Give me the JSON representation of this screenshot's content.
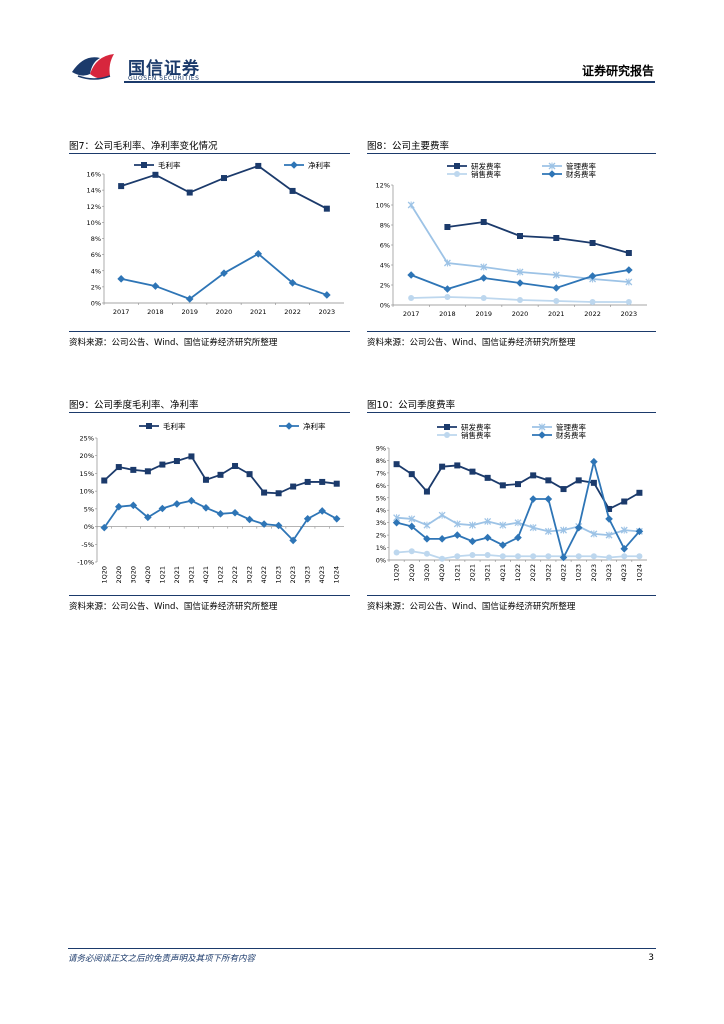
{
  "header": {
    "logo_cn": "国信证券",
    "logo_en": "GUOSEN SECURITIES",
    "report_type": "证券研究报告"
  },
  "figures": [
    {
      "title": "图7：公司毛利率、净利率变化情况",
      "source": "资料来源：公司公告、Wind、国信证券经济研究所整理"
    },
    {
      "title": "图8：公司主要费率",
      "source": "资料来源：公司公告、Wind、国信证券经济研究所整理"
    },
    {
      "title": "图9：公司季度毛利率、净利率",
      "source": "资料来源：公司公告、Wind、国信证券经济研究所整理"
    },
    {
      "title": "图10：公司季度费率",
      "source": "资料来源：公司公告、Wind、国信证券经济研究所整理"
    }
  ],
  "footer": {
    "disclaimer": "请务必阅读正文之后的免责声明及其项下所有内容",
    "page_number": "3"
  },
  "colors": {
    "dark_blue": "#1b3a6b",
    "mid_blue": "#2e75b6",
    "light_blue": "#9dc3e6",
    "pale_blue": "#bdd7ee"
  },
  "chart_data": [
    {
      "type": "line",
      "categories": [
        "2017",
        "2018",
        "2019",
        "2020",
        "2021",
        "2022",
        "2023"
      ],
      "ylim": [
        0,
        16
      ],
      "yticks": [
        "0%",
        "2%",
        "4%",
        "6%",
        "8%",
        "10%",
        "12%",
        "14%",
        "16%"
      ],
      "legend": "top",
      "series": [
        {
          "name": "毛利率",
          "values": [
            14.5,
            15.9,
            13.7,
            15.5,
            17.0,
            13.9,
            11.7
          ],
          "color": "#1b3a6b",
          "marker": "square"
        },
        {
          "name": "净利率",
          "values": [
            3.0,
            2.1,
            0.5,
            3.7,
            6.1,
            2.5,
            1.0
          ],
          "color": "#2e75b6",
          "marker": "diamond"
        }
      ]
    },
    {
      "type": "line",
      "categories": [
        "2017",
        "2018",
        "2019",
        "2020",
        "2021",
        "2022",
        "2023"
      ],
      "ylim": [
        0,
        12
      ],
      "yticks": [
        "0%",
        "2%",
        "4%",
        "6%",
        "8%",
        "10%",
        "12%"
      ],
      "legend": "top",
      "series": [
        {
          "name": "研发费率",
          "values": [
            null,
            7.8,
            8.3,
            6.9,
            6.7,
            6.2,
            5.2
          ],
          "color": "#1b3a6b",
          "marker": "square"
        },
        {
          "name": "管理费率",
          "values": [
            10.0,
            4.2,
            3.8,
            3.3,
            3.0,
            2.6,
            2.3
          ],
          "color": "#9dc3e6",
          "marker": "x"
        },
        {
          "name": "销售费率",
          "values": [
            0.7,
            0.8,
            0.7,
            0.5,
            0.4,
            0.3,
            0.3
          ],
          "color": "#bdd7ee",
          "marker": "circle"
        },
        {
          "name": "财务费率",
          "values": [
            3.0,
            1.6,
            2.7,
            2.2,
            1.7,
            2.9,
            3.5
          ],
          "color": "#2e75b6",
          "marker": "diamond"
        }
      ]
    },
    {
      "type": "line",
      "categories": [
        "1Q20",
        "2Q20",
        "3Q20",
        "4Q20",
        "1Q21",
        "2Q21",
        "3Q21",
        "4Q21",
        "1Q22",
        "2Q22",
        "3Q22",
        "4Q22",
        "1Q23",
        "2Q23",
        "3Q23",
        "4Q23",
        "1Q24"
      ],
      "ylim": [
        -10,
        25
      ],
      "yticks": [
        "-10%",
        "-5%",
        "0%",
        "5%",
        "10%",
        "15%",
        "20%",
        "25%"
      ],
      "legend": "top",
      "series": [
        {
          "name": "毛利率",
          "values": [
            13.0,
            16.8,
            16.0,
            15.6,
            17.5,
            18.5,
            19.8,
            13.2,
            14.6,
            17.1,
            14.8,
            9.6,
            9.4,
            11.3,
            12.6,
            12.6,
            12.1
          ],
          "color": "#1b3a6b",
          "marker": "square"
        },
        {
          "name": "净利率",
          "values": [
            -0.3,
            5.6,
            6.0,
            2.6,
            5.1,
            6.4,
            7.3,
            5.3,
            3.6,
            3.9,
            2.0,
            0.7,
            0.3,
            -3.9,
            2.2,
            4.4,
            2.2
          ],
          "color": "#2e75b6",
          "marker": "diamond"
        }
      ]
    },
    {
      "type": "line",
      "categories": [
        "1Q20",
        "2Q20",
        "3Q20",
        "4Q20",
        "1Q21",
        "2Q21",
        "3Q21",
        "4Q21",
        "1Q22",
        "2Q22",
        "3Q22",
        "4Q22",
        "1Q23",
        "2Q23",
        "3Q23",
        "4Q23",
        "1Q24"
      ],
      "ylim": [
        0,
        9
      ],
      "yticks": [
        "0%",
        "1%",
        "2%",
        "3%",
        "4%",
        "5%",
        "6%",
        "7%",
        "8%",
        "9%"
      ],
      "legend": "top",
      "series": [
        {
          "name": "研发费率",
          "values": [
            7.7,
            6.9,
            5.5,
            7.5,
            7.6,
            7.1,
            6.6,
            6.0,
            6.1,
            6.8,
            6.4,
            5.7,
            6.4,
            6.2,
            4.1,
            4.7,
            5.4
          ],
          "color": "#1b3a6b",
          "marker": "square"
        },
        {
          "name": "管理费率",
          "values": [
            3.4,
            3.3,
            2.8,
            3.6,
            2.9,
            2.8,
            3.1,
            2.8,
            3.0,
            2.6,
            2.3,
            2.4,
            2.7,
            2.1,
            2.0,
            2.4,
            2.3
          ],
          "color": "#9dc3e6",
          "marker": "x"
        },
        {
          "name": "销售费率",
          "values": [
            0.6,
            0.7,
            0.5,
            0.1,
            0.3,
            0.4,
            0.4,
            0.3,
            0.3,
            0.3,
            0.3,
            0.3,
            0.3,
            0.3,
            0.2,
            0.3,
            0.3
          ],
          "color": "#bdd7ee",
          "marker": "circle"
        },
        {
          "name": "财务费率",
          "values": [
            3.0,
            2.7,
            1.7,
            1.7,
            2.0,
            1.5,
            1.8,
            1.2,
            1.8,
            4.9,
            4.9,
            0.2,
            2.6,
            7.9,
            3.3,
            0.9,
            2.3
          ],
          "color": "#2e75b6",
          "marker": "diamond"
        }
      ]
    }
  ]
}
